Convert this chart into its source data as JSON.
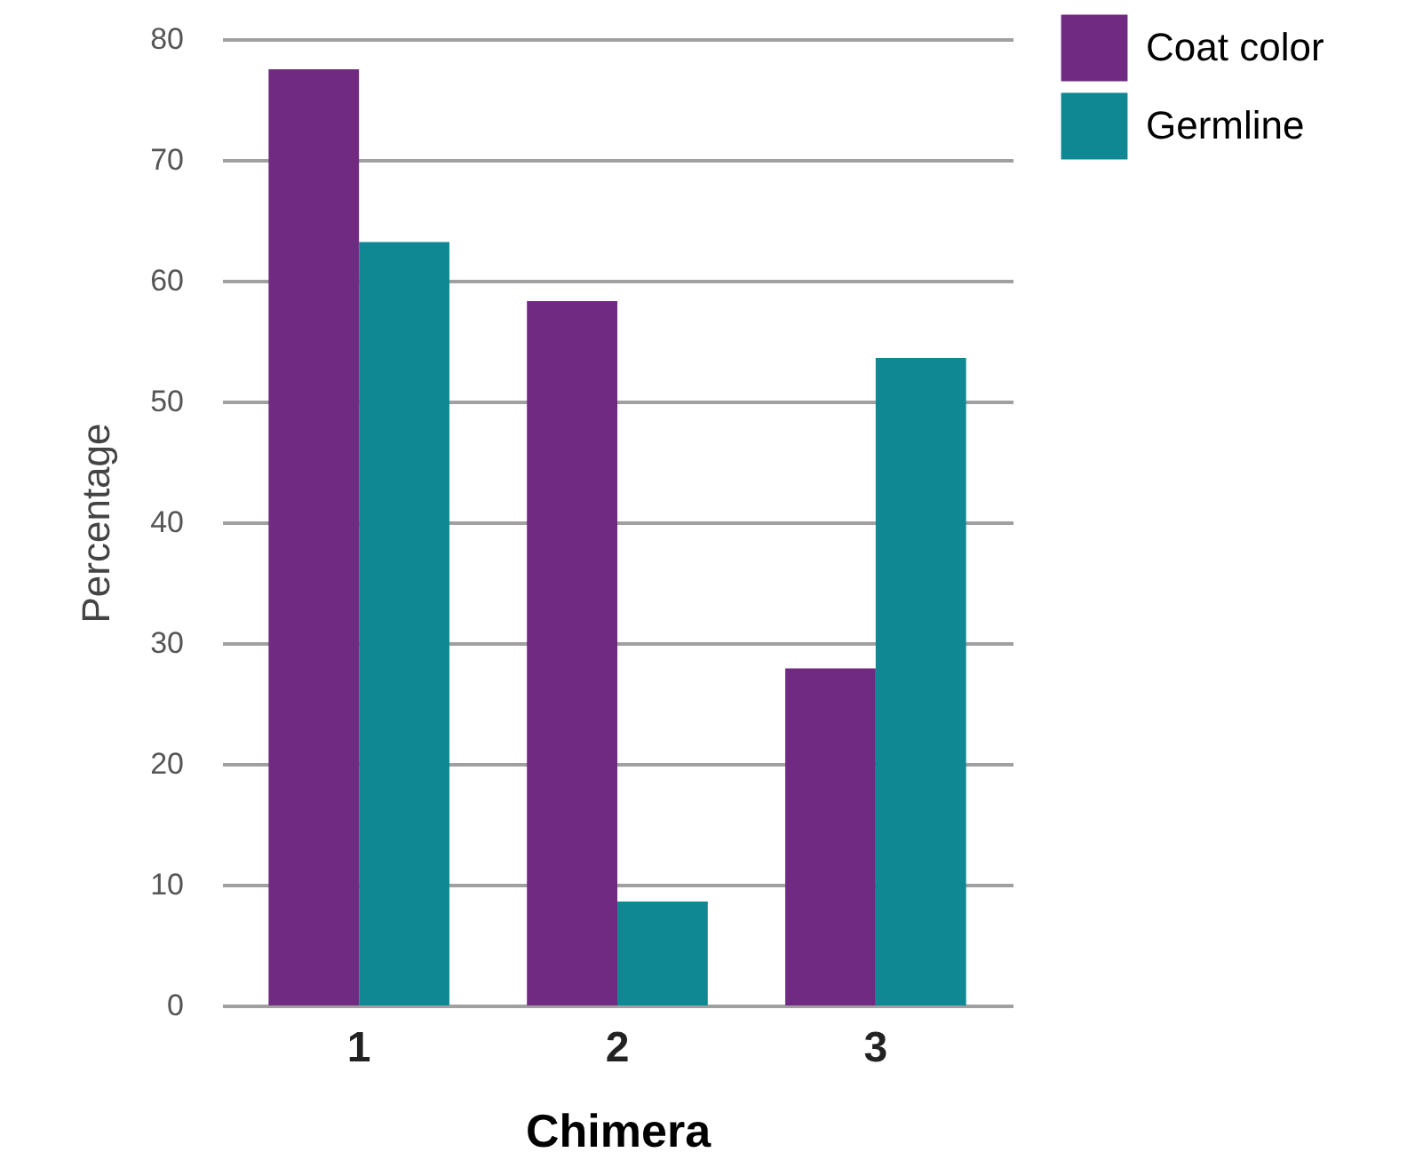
{
  "chart_data": {
    "type": "bar",
    "xlabel": "Chimera",
    "ylabel": "Percentage",
    "categories": [
      "1",
      "2",
      "3"
    ],
    "series": [
      {
        "name": "Coat color",
        "color": "#702a82",
        "values": [
          77.5,
          58.3,
          27.9
        ]
      },
      {
        "name": "Germline",
        "color": "#0f8894",
        "values": [
          63.2,
          8.6,
          53.6
        ]
      }
    ],
    "ylim": [
      0,
      80
    ],
    "yticks": [
      0,
      10,
      20,
      30,
      40,
      50,
      60,
      70,
      80
    ],
    "grid": "y",
    "legend": "top right"
  }
}
